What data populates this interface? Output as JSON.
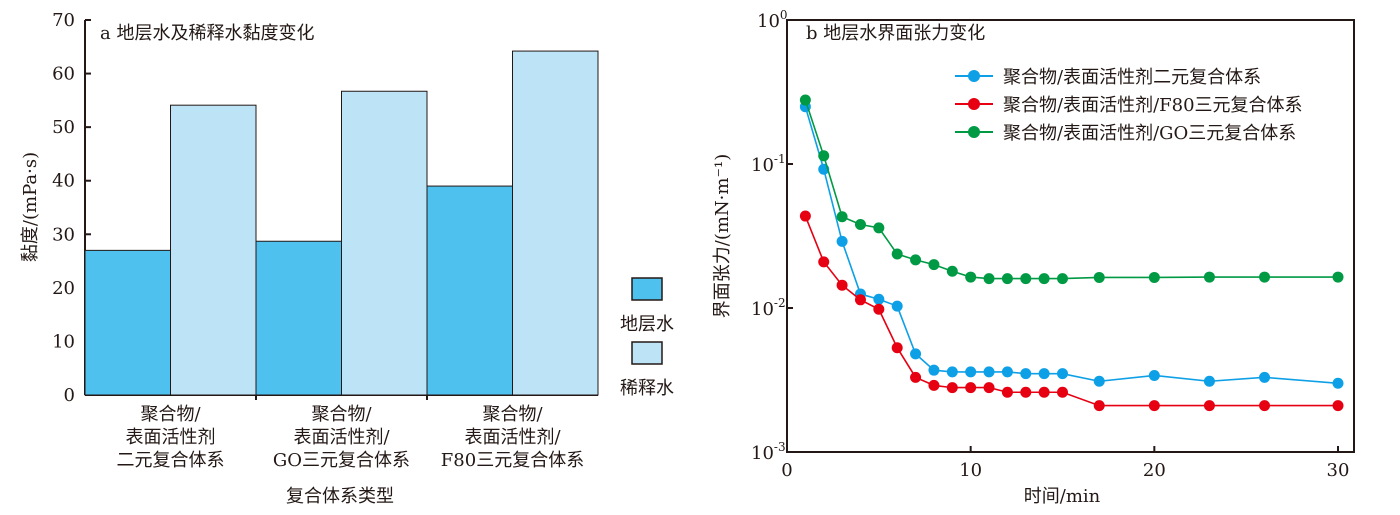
{
  "chart_data": [
    {
      "type": "bar",
      "title": "a 地层水及稀释水黏度变化",
      "xlabel": "复合体系类型",
      "ylabel": "黏度/(mPa·s)",
      "ylim": [
        0,
        70
      ],
      "yticks": [
        "0",
        "10",
        "20",
        "30",
        "40",
        "50",
        "60",
        "70"
      ],
      "categories": [
        [
          "聚合物/",
          "表面活性剂",
          "二元复合体系"
        ],
        [
          "聚合物/",
          "表面活性剂/",
          "GO三元复合体系"
        ],
        [
          "聚合物/",
          "表面活性剂/",
          "F80三元复合体系"
        ]
      ],
      "series": [
        {
          "name": "地层水",
          "color": "#4fc1ee",
          "values": [
            27.0,
            28.7,
            39.0
          ]
        },
        {
          "name": "稀释水",
          "color": "#bde3f7",
          "values": [
            54.1,
            56.7,
            64.2
          ]
        }
      ],
      "legend": "right"
    },
    {
      "type": "line",
      "title": "b 地层水界面张力变化",
      "xlabel": "时间/min",
      "ylabel": "界面张力/(mN·m⁻¹)",
      "yscale": "log",
      "ylim": [
        0.001,
        1
      ],
      "xlim": [
        0,
        30
      ],
      "xticks": [
        "0",
        "10",
        "20",
        "30"
      ],
      "yticks": [
        {
          "base": "10",
          "exp": "0"
        },
        {
          "base": "10",
          "exp": "-1"
        },
        {
          "base": "10",
          "exp": "-2"
        },
        {
          "base": "10",
          "exp": "-3"
        }
      ],
      "x": [
        1,
        2,
        3,
        4,
        5,
        6,
        7,
        8,
        9,
        10,
        11,
        12,
        13,
        14,
        15,
        17,
        20,
        23,
        26,
        30
      ],
      "series": [
        {
          "name": "聚合物/表面活性剂二元复合体系",
          "color": "#0ea0e6",
          "values": [
            0.25,
            0.092,
            0.029,
            0.0125,
            0.0115,
            0.0103,
            0.0048,
            0.0037,
            0.0036,
            0.0036,
            0.0036,
            0.0036,
            0.0035,
            0.0035,
            0.0035,
            0.0031,
            0.0034,
            0.0031,
            0.0033,
            0.003
          ]
        },
        {
          "name": "聚合物/表面活性剂/F80三元复合体系",
          "color": "#e60012",
          "values": [
            0.0435,
            0.0209,
            0.0144,
            0.0114,
            0.0098,
            0.0053,
            0.0033,
            0.0029,
            0.0028,
            0.0028,
            0.0028,
            0.0026,
            0.0026,
            0.0026,
            0.0026,
            0.0021,
            0.0021,
            0.0021,
            0.0021,
            0.0021
          ]
        },
        {
          "name": "聚合物/表面活性剂/GO三元复合体系",
          "color": "#009a44",
          "values": [
            0.278,
            0.114,
            0.043,
            0.038,
            0.036,
            0.0237,
            0.0216,
            0.02,
            0.018,
            0.0164,
            0.016,
            0.016,
            0.016,
            0.016,
            0.016,
            0.0163,
            0.0163,
            0.0164,
            0.0164,
            0.0164
          ]
        }
      ],
      "legend": "top-right"
    }
  ]
}
